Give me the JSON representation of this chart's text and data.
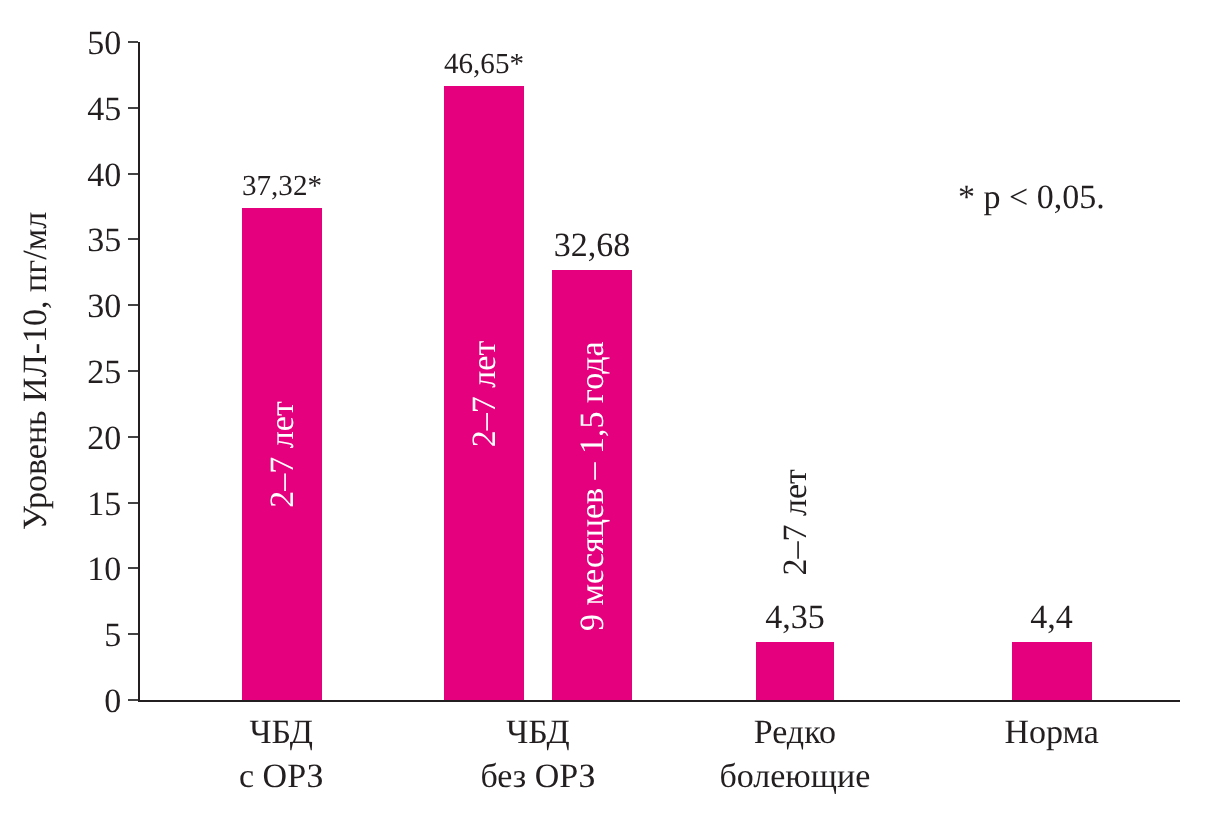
{
  "chart_data": {
    "type": "bar",
    "categories": [
      "ЧБД\nс ОРЗ",
      "ЧБД\nбез ОРЗ",
      "Редко\nболеющие",
      "Норма"
    ],
    "series": [
      {
        "color": "#e5007d",
        "values": [
          37.32,
          46.65,
          4.35,
          4.4
        ],
        "value_labels": [
          "37,32*",
          "46,65*",
          "4,35",
          "4,4"
        ]
      },
      {
        "color": "#e5007d",
        "values": [
          null,
          32.68,
          null,
          null
        ],
        "value_labels": [
          null,
          "32,68",
          null,
          null
        ]
      }
    ],
    "ylabel": "Уровень ИЛ-10, пг/мл",
    "ylim": [
      0,
      50
    ],
    "yticks": [
      0,
      5,
      10,
      15,
      20,
      25,
      30,
      35,
      40,
      45,
      50
    ],
    "annotations": [
      "2–7 лет",
      "2–7 лет",
      "9 месяцев – 1,5 года",
      "2–7 лет",
      "* p < 0,05."
    ]
  }
}
